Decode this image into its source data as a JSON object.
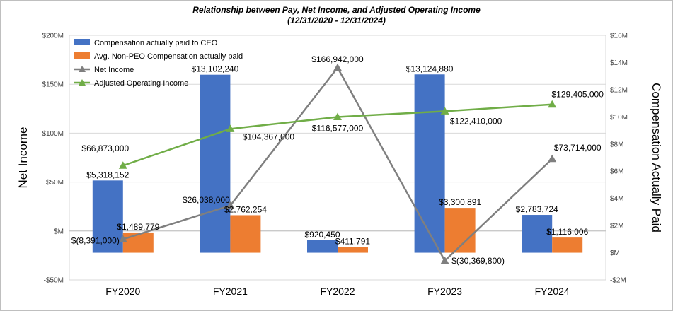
{
  "chart_data": {
    "type": "bar",
    "title": "Relationship between Pay, Net Income, and Adjusted Operating Income",
    "subtitle": "(12/31/2020 - 12/31/2024)",
    "categories": [
      "FY2020",
      "FY2021",
      "FY2022",
      "FY2023",
      "FY2024"
    ],
    "ylabel_left": "Net Income",
    "ylabel_right": "Compensation Actually Paid",
    "left_axis": {
      "range": [
        -50000000,
        200000000
      ],
      "ticks": [
        -50000000,
        0,
        50000000,
        100000000,
        150000000,
        200000000
      ],
      "tick_labels": [
        "-$50M",
        "$M",
        "$50M",
        "$100M",
        "$150M",
        "$200M"
      ]
    },
    "right_axis": {
      "range": [
        -2000000,
        16000000
      ],
      "ticks": [
        -2000000,
        0,
        2000000,
        4000000,
        6000000,
        8000000,
        10000000,
        12000000,
        14000000,
        16000000
      ],
      "tick_labels": [
        "-$2M",
        "$M",
        "$2M",
        "$4M",
        "$6M",
        "$8M",
        "$10M",
        "$12M",
        "$14M",
        "$16M"
      ]
    },
    "legend_position": "top-left",
    "series": [
      {
        "name": "Compensation actually paid to CEO",
        "type": "bar",
        "axis": "right",
        "color": "#4472C4",
        "values": [
          5318152,
          13102240,
          920450,
          13124880,
          2783724
        ],
        "labels": [
          "$5,318,152",
          "$13,102,240",
          "$920,450",
          "$13,124,880",
          "$2,783,724"
        ]
      },
      {
        "name": "Avg. Non-PEO Compensation actually paid",
        "type": "bar",
        "axis": "right",
        "color": "#ED7D31",
        "values": [
          1489779,
          2762254,
          411791,
          3300891,
          1116006
        ],
        "labels": [
          "$1,489,779",
          "$2,762,254",
          "$411,791",
          "$3,300,891",
          "$1,116,006"
        ]
      },
      {
        "name": "Net Income",
        "type": "line",
        "axis": "left",
        "color": "#7F7F7F",
        "values": [
          -8391000,
          26038000,
          166942000,
          -30369800,
          73714000
        ],
        "labels": [
          "$(8,391,000)",
          "$26,038,000",
          "$166,942,000",
          "$(30,369,800)",
          "$73,714,000"
        ]
      },
      {
        "name": "Adjusted Operating Income",
        "type": "line",
        "axis": "left",
        "color": "#70AD47",
        "values": [
          66873000,
          104367000,
          116577000,
          122410000,
          129405000
        ],
        "labels": [
          "$66,873,000",
          "$104,367,000",
          "$116,577,000",
          "$122,410,000",
          "$129,405,000"
        ]
      }
    ]
  }
}
